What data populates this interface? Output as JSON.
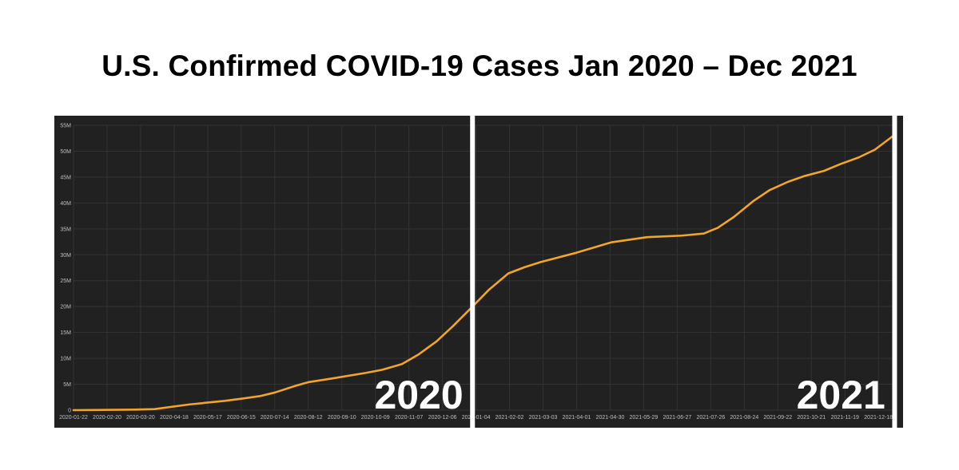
{
  "colors": {
    "background": "#ffffff",
    "plot_background": "#212121",
    "grid": "#333333",
    "line": "#f2a52c",
    "divider": "#ffffff",
    "axis_text": "#bfbfbf"
  },
  "chart_data": {
    "type": "line",
    "title": "U.S. Confirmed COVID-19 Cases Jan 2020 – Dec 2021",
    "xlabel": "",
    "ylabel": "",
    "x_type": "date",
    "xlim": [
      "2020-01-22",
      "2021-12-31"
    ],
    "ylim": [
      0,
      55000000
    ],
    "grid": true,
    "legend": "none",
    "y_ticks": [
      {
        "value": 0,
        "label": "0"
      },
      {
        "value": 5000000,
        "label": "5M"
      },
      {
        "value": 10000000,
        "label": "10M"
      },
      {
        "value": 15000000,
        "label": "15M"
      },
      {
        "value": 20000000,
        "label": "20M"
      },
      {
        "value": 25000000,
        "label": "25M"
      },
      {
        "value": 30000000,
        "label": "30M"
      },
      {
        "value": 35000000,
        "label": "35M"
      },
      {
        "value": 40000000,
        "label": "40M"
      },
      {
        "value": 45000000,
        "label": "45M"
      },
      {
        "value": 50000000,
        "label": "50M"
      },
      {
        "value": 55000000,
        "label": "55M"
      }
    ],
    "x_ticks": [
      "2020-01-22",
      "2020-02-20",
      "2020-03-20",
      "2020-04-18",
      "2020-05-17",
      "2020-06-15",
      "2020-07-14",
      "2020-08-12",
      "2020-09-10",
      "2020-10-09",
      "2020-11-07",
      "2020-12-06",
      "2021-01-04",
      "2021-02-02",
      "2021-03-03",
      "2021-04-01",
      "2021-04-30",
      "2021-05-29",
      "2021-06-27",
      "2021-07-26",
      "2021-08-24",
      "2021-09-22",
      "2021-10-21",
      "2021-11-19",
      "2021-12-18"
    ],
    "annotations": [
      {
        "text": "2020",
        "date": "2020-12-24"
      },
      {
        "text": "2021",
        "date": "2021-12-24"
      }
    ],
    "dividers": [
      "2021-01-01",
      "2022-01-01"
    ],
    "series": [
      {
        "x": [
          "2020-01-22",
          "2020-03-15",
          "2020-04-01",
          "2020-05-01",
          "2020-06-01",
          "2020-06-15",
          "2020-07-01",
          "2020-07-14",
          "2020-08-01",
          "2020-08-12",
          "2020-09-01",
          "2020-10-01",
          "2020-10-15",
          "2020-11-01",
          "2020-11-15",
          "2020-12-01",
          "2020-12-15",
          "2021-01-01",
          "2021-01-15",
          "2021-02-01",
          "2021-02-15",
          "2021-03-01",
          "2021-04-01",
          "2021-05-01",
          "2021-06-01",
          "2021-07-01",
          "2021-07-20",
          "2021-08-01",
          "2021-08-15",
          "2021-09-01",
          "2021-09-15",
          "2021-10-01",
          "2021-10-15",
          "2021-11-01",
          "2021-11-15",
          "2021-12-01",
          "2021-12-15",
          "2021-12-31"
        ],
        "values": [
          0,
          100000,
          200000,
          1100000,
          1800000,
          2200000,
          2700000,
          3400000,
          4700000,
          5400000,
          6100000,
          7200000,
          7800000,
          8900000,
          10700000,
          13300000,
          16200000,
          20000000,
          23200000,
          26400000,
          27600000,
          28600000,
          30400000,
          32400000,
          33400000,
          33700000,
          34100000,
          35200000,
          37300000,
          40400000,
          42500000,
          44100000,
          45200000,
          46200000,
          47500000,
          48800000,
          50300000,
          53000000
        ]
      }
    ]
  }
}
